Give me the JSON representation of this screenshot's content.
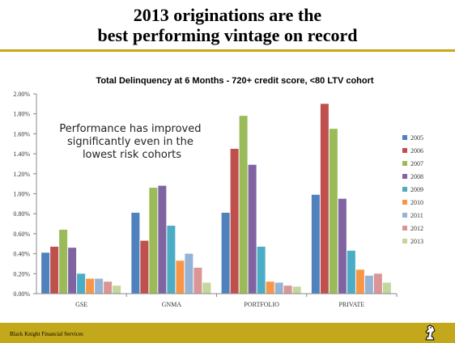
{
  "slide": {
    "title_line1": "2013 originations are the",
    "title_line2": "best performing vintage on record",
    "footer": "Black Knight Financial Services"
  },
  "chart_data": {
    "type": "bar",
    "title": "Total Delinquency at 6 Months - 720+ credit score, <80 LTV cohort",
    "categories": [
      "GSE",
      "GNMA",
      "PORTFOLIO",
      "PRIVATE"
    ],
    "ylim": [
      0,
      0.02
    ],
    "yticks": [
      "0.00%",
      "0.20%",
      "0.40%",
      "0.60%",
      "0.80%",
      "1.00%",
      "1.20%",
      "1.40%",
      "1.60%",
      "1.80%",
      "2.00%"
    ],
    "grid": false,
    "legend": "right",
    "annotation": "Performance has improved significantly even in the lowest risk cohorts",
    "series": [
      {
        "name": "2005",
        "color": "#4f81bd",
        "values": [
          0.0041,
          0.0081,
          0.0081,
          0.0099
        ]
      },
      {
        "name": "2006",
        "color": "#c0504d",
        "values": [
          0.0047,
          0.0053,
          0.0145,
          0.019
        ]
      },
      {
        "name": "2007",
        "color": "#9bbb59",
        "values": [
          0.0064,
          0.0106,
          0.0178,
          0.0165
        ]
      },
      {
        "name": "2008",
        "color": "#8064a2",
        "values": [
          0.0046,
          0.0108,
          0.0129,
          0.0095
        ]
      },
      {
        "name": "2009",
        "color": "#4bacc6",
        "values": [
          0.002,
          0.0068,
          0.0047,
          0.0043
        ]
      },
      {
        "name": "2010",
        "color": "#f79646",
        "values": [
          0.0015,
          0.0033,
          0.0012,
          0.0024
        ]
      },
      {
        "name": "2011",
        "color": "#95b3d7",
        "values": [
          0.0015,
          0.004,
          0.0011,
          0.0018
        ]
      },
      {
        "name": "2012",
        "color": "#d99694",
        "values": [
          0.0012,
          0.0026,
          0.0008,
          0.002
        ]
      },
      {
        "name": "2013",
        "color": "#c3d69b",
        "values": [
          0.0008,
          0.0011,
          0.0007,
          0.0011
        ]
      }
    ]
  }
}
